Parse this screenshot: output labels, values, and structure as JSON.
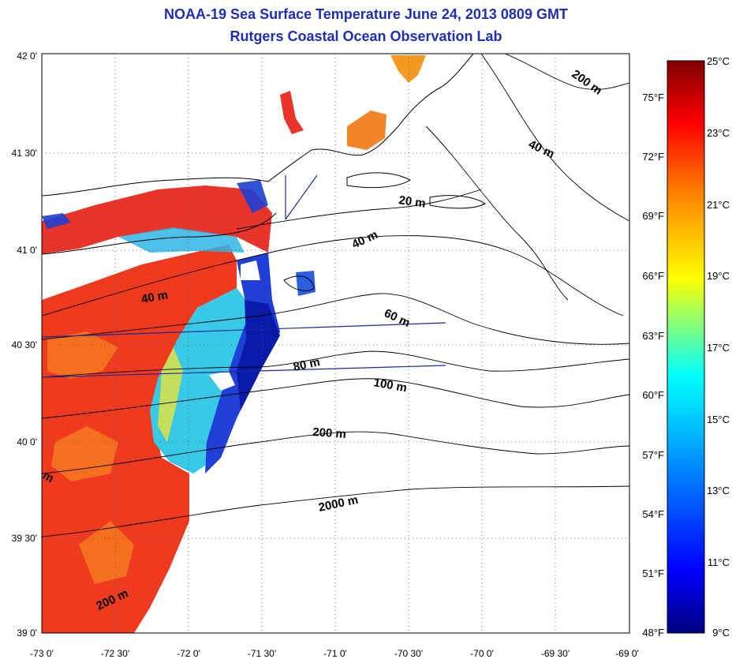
{
  "title": "NOAA-19 Sea Surface Temperature June 24, 2013 0809 GMT",
  "subtitle": "Rutgers Coastal Ocean Observation Lab",
  "map": {
    "lon_range": [
      -73.0,
      -69.0
    ],
    "lat_range": [
      39.0,
      42.0
    ],
    "lon_ticks": [
      "-73 0'",
      "-72 30'",
      "-72 0'",
      "-71 30'",
      "-71 0'",
      "-70 30'",
      "-70 0'",
      "-69 30'",
      "-69 0'"
    ],
    "lat_ticks": [
      "42 0'",
      "41 30'",
      "41 0'",
      "40 30'",
      "40 0'",
      "39 30'",
      "39 0'"
    ],
    "grid": "dotted",
    "bathymetry_labels": [
      "200 m",
      "40 m",
      "20 m",
      "40 m",
      "40 m",
      "60 m",
      "80 m",
      "100 m",
      "200 m",
      "2000 m",
      "200 m",
      "m"
    ]
  },
  "colorbar": {
    "range_c": [
      9,
      25
    ],
    "celsius_labels": [
      "25°C",
      "23°C",
      "21°C",
      "19°C",
      "17°C",
      "15°C",
      "13°C",
      "11°C",
      "9°C"
    ],
    "fahrenheit_labels": [
      "75°F",
      "72°F",
      "69°F",
      "66°F",
      "63°F",
      "60°F",
      "57°F",
      "54°F",
      "51°F",
      "48°F"
    ],
    "colors": [
      "#000080",
      "#0000ff",
      "#00bfff",
      "#00ffff",
      "#ffff00",
      "#ff8000",
      "#ff0000",
      "#800000"
    ]
  }
}
